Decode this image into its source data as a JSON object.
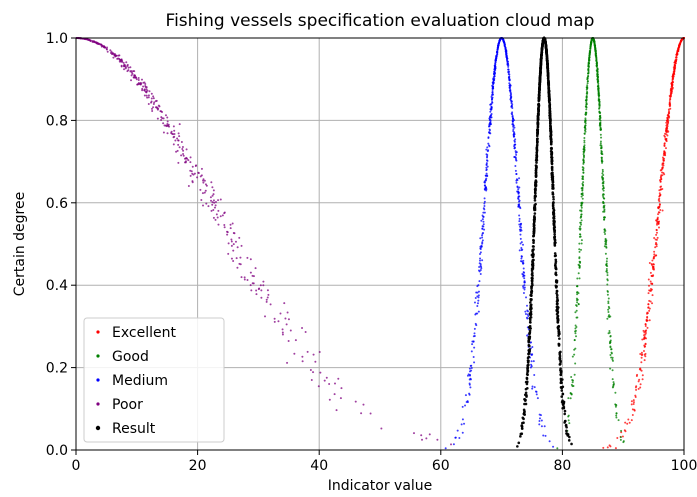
{
  "chart_data": {
    "type": "scatter",
    "title": "Fishing vessels specification evaluation cloud map",
    "xlabel": "Indicator value",
    "ylabel": "Certain degree",
    "xlim": [
      0,
      100
    ],
    "ylim": [
      0,
      1.0
    ],
    "xticks": [
      0,
      20,
      40,
      60,
      80,
      100
    ],
    "xtick_labels": [
      "0",
      "20",
      "40",
      "60",
      "80",
      "100"
    ],
    "yticks": [
      0.0,
      0.2,
      0.4,
      0.6,
      0.8,
      1.0
    ],
    "ytick_labels": [
      "0.0",
      "0.2",
      "0.4",
      "0.6",
      "0.8",
      "1.0"
    ],
    "grid": true,
    "legend_position": "lower-left",
    "series": [
      {
        "name": "Excellent",
        "color": "#ff0000",
        "model": "normal-cloud-one-sided-left",
        "Ex": 100,
        "En": 4.0,
        "He": 0.15,
        "count": 500
      },
      {
        "name": "Good",
        "color": "#008000",
        "model": "normal-cloud",
        "Ex": 85,
        "En": 1.8,
        "He": 0.08,
        "count": 700
      },
      {
        "name": "Medium",
        "color": "#0000ff",
        "model": "normal-cloud",
        "Ex": 70,
        "En": 2.8,
        "He": 0.12,
        "count": 700
      },
      {
        "name": "Poor",
        "color": "#800080",
        "model": "normal-cloud-one-sided-right",
        "Ex": 0,
        "En": 22,
        "He": 0.9,
        "count": 450
      },
      {
        "name": "Result",
        "color": "#000000",
        "model": "normal-cloud",
        "Ex": 77,
        "En": 1.5,
        "He": 0.04,
        "count": 1200
      }
    ]
  }
}
